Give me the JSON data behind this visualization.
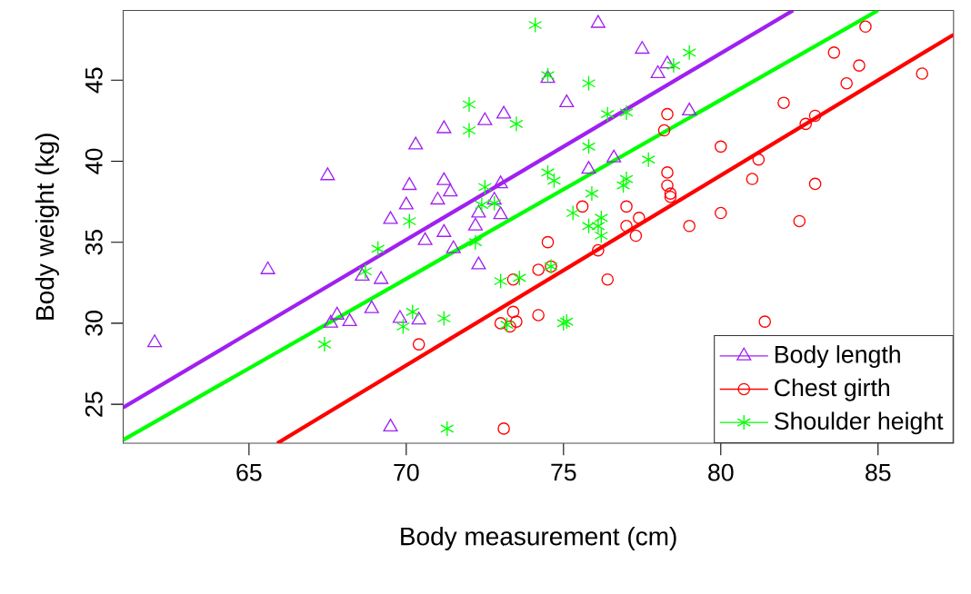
{
  "chart_data": {
    "type": "scatter",
    "xlabel": "Body measurement (cm)",
    "ylabel": "Body weight (kg)",
    "xlim": [
      61,
      87.4
    ],
    "ylim": [
      22.6,
      49.3
    ],
    "xticks": [
      65,
      70,
      75,
      80,
      85
    ],
    "yticks": [
      25,
      30,
      35,
      40,
      45
    ],
    "grid": false,
    "legend": "bottom right",
    "series": [
      {
        "name": "Body length",
        "color": "#a020f0",
        "marker": "triangle",
        "x": [
          62.0,
          67.5,
          65.6,
          69.5,
          68.9,
          69.2,
          68.6,
          70.0,
          70.1,
          70.3,
          70.6,
          71.2,
          71.2,
          71.0,
          71.4,
          71.2,
          71.5,
          67.6,
          67.8,
          68.2,
          69.8,
          70.4,
          69.5,
          72.3,
          72.2,
          72.3,
          72.5,
          73.1,
          73.0,
          73.0,
          72.8,
          74.5,
          75.1,
          76.1,
          77.5,
          78.0,
          78.3,
          79.0,
          75.8,
          76.6
        ],
        "values": [
          28.8,
          39.1,
          33.3,
          36.4,
          30.9,
          32.7,
          32.9,
          37.3,
          38.5,
          41.0,
          35.1,
          42.0,
          38.8,
          37.6,
          38.1,
          35.6,
          34.6,
          30.0,
          30.5,
          30.1,
          30.3,
          30.2,
          23.6,
          33.6,
          36.0,
          36.8,
          42.5,
          42.9,
          38.6,
          36.7,
          37.6,
          45.1,
          43.6,
          48.5,
          46.9,
          45.4,
          46.0,
          43.1,
          39.5,
          40.2
        ]
      },
      {
        "name": "Chest girth",
        "color": "#ff0000",
        "marker": "circle",
        "x": [
          70.4,
          73.1,
          73.0,
          73.3,
          73.5,
          73.4,
          73.4,
          74.2,
          74.2,
          74.5,
          74.6,
          75.6,
          76.1,
          76.4,
          77.0,
          77.0,
          77.4,
          77.3,
          78.3,
          78.2,
          78.3,
          78.3,
          78.4,
          78.4,
          79.0,
          80.0,
          80.0,
          81.0,
          81.2,
          82.0,
          82.5,
          82.7,
          83.0,
          83.0,
          83.6,
          84.0,
          84.4,
          84.6,
          86.4,
          81.4
        ],
        "values": [
          28.7,
          23.5,
          30.0,
          29.8,
          30.1,
          30.7,
          32.7,
          30.5,
          33.3,
          35.0,
          33.5,
          37.2,
          34.5,
          32.7,
          37.2,
          36.0,
          36.5,
          35.4,
          42.9,
          41.9,
          39.3,
          38.5,
          38.0,
          37.8,
          36.0,
          40.9,
          36.8,
          38.9,
          40.1,
          43.6,
          36.3,
          42.3,
          42.8,
          38.6,
          46.7,
          44.8,
          45.9,
          48.3,
          45.4,
          30.1
        ]
      },
      {
        "name": "Shoulder height",
        "color": "#00ff00",
        "marker": "cross",
        "x": [
          67.4,
          68.7,
          69.1,
          70.1,
          70.2,
          69.9,
          71.2,
          71.3,
          72.0,
          72.0,
          72.2,
          72.5,
          72.4,
          72.8,
          73.5,
          73.0,
          73.6,
          73.2,
          74.1,
          74.5,
          74.5,
          74.7,
          74.6,
          75.0,
          75.1,
          75.8,
          75.8,
          75.9,
          75.3,
          75.8,
          76.1,
          76.2,
          76.2,
          76.4,
          77.0,
          77.0,
          76.9,
          77.7,
          78.5,
          79.0
        ],
        "values": [
          28.7,
          33.2,
          34.6,
          36.3,
          30.7,
          29.8,
          30.3,
          23.5,
          43.5,
          41.9,
          35.0,
          38.4,
          37.3,
          37.4,
          42.3,
          32.6,
          32.8,
          29.9,
          48.4,
          45.3,
          39.3,
          38.8,
          33.5,
          30.0,
          30.1,
          44.8,
          40.9,
          38.0,
          36.8,
          36.0,
          36.0,
          36.5,
          35.4,
          42.9,
          43.0,
          38.9,
          38.5,
          40.1,
          45.9,
          46.7
        ]
      },
      {
        "type": "line",
        "color": "#a020f0",
        "x": [
          61,
          82.3
        ],
        "values": [
          24.8,
          49.3
        ]
      },
      {
        "type": "line",
        "color": "#ff0000",
        "x": [
          65.9,
          87.4
        ],
        "values": [
          22.6,
          47.8
        ]
      },
      {
        "type": "line",
        "color": "#00ff00",
        "x": [
          61,
          85.0
        ],
        "values": [
          22.8,
          49.3
        ]
      }
    ]
  }
}
